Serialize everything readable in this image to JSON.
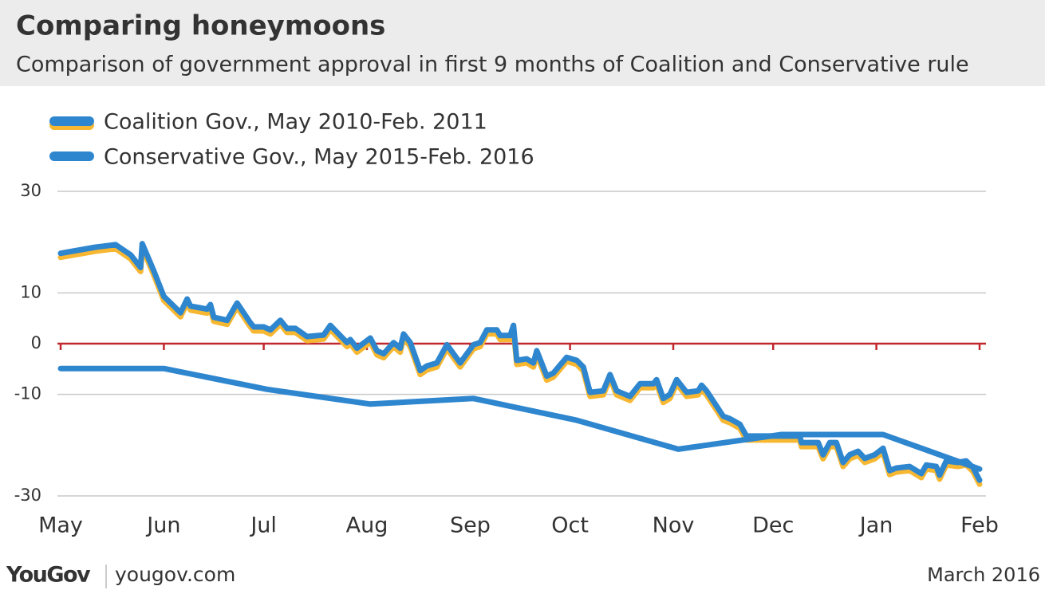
{
  "chart_data": {
    "type": "line",
    "title": "Comparing honeymoons",
    "subtitle": "Comparison of government approval in first 9 months of Coalition and Conservative rule",
    "xlim": [
      0,
      276
    ],
    "xticks": [
      {
        "value": 0,
        "label": "May"
      },
      {
        "value": 31,
        "label": "Jun"
      },
      {
        "value": 61,
        "label": "Jul"
      },
      {
        "value": 92,
        "label": "Aug"
      },
      {
        "value": 123,
        "label": "Sep"
      },
      {
        "value": 153,
        "label": "Oct"
      },
      {
        "value": 184,
        "label": "Nov"
      },
      {
        "value": 214,
        "label": "Dec"
      },
      {
        "value": 245,
        "label": "Jan"
      },
      {
        "value": 276,
        "label": "Feb"
      }
    ],
    "ylim": [
      -30,
      30
    ],
    "yticks": [
      30,
      10,
      0,
      -10,
      -30
    ],
    "grid": true,
    "series": [
      {
        "name": "Coalition Gov., May 2010-Feb. 2011",
        "color": "#2e86cf",
        "shadow_color": "#f7b731",
        "x": [
          0,
          10.5,
          16.5,
          21,
          24,
          24.5,
          28,
          31,
          36,
          38,
          39,
          44,
          45,
          46,
          50,
          53,
          57,
          58,
          61,
          63,
          66,
          68,
          70.5,
          74,
          79,
          81,
          86,
          87,
          89,
          93,
          95,
          97,
          100,
          102,
          103,
          105,
          108,
          110,
          113,
          116,
          120,
          124,
          126,
          128,
          131,
          132,
          135,
          136,
          137,
          140,
          142,
          143,
          146,
          148,
          152,
          155,
          157,
          159,
          163,
          165,
          167,
          171,
          174,
          178,
          179,
          181,
          183,
          185,
          188,
          191.5,
          192.5,
          194,
          199,
          201,
          204,
          206,
          222,
          222.5,
          227.5,
          229,
          231,
          233,
          235,
          237,
          239.5,
          241.5,
          244.5,
          247,
          249,
          251,
          255,
          258.5,
          260,
          263,
          264,
          266,
          269.5,
          272,
          274,
          276
        ],
        "values": [
          17.8,
          19,
          19.5,
          17.5,
          15,
          19.7,
          14.3,
          9.3,
          6.1,
          8.8,
          7.4,
          6.8,
          7.7,
          5.2,
          4.6,
          8,
          4.1,
          3.3,
          3.3,
          2.7,
          4.6,
          3,
          3,
          1.4,
          1.7,
          3.6,
          0.2,
          0.8,
          -0.9,
          1.1,
          -1.4,
          -2,
          0.2,
          -0.9,
          1.9,
          0.2,
          -5.3,
          -4.4,
          -3.8,
          -0.2,
          -3.8,
          -0.2,
          0.2,
          2.7,
          2.7,
          1.6,
          1.6,
          3.6,
          -3.3,
          -3,
          -3.8,
          -1.4,
          -6.4,
          -5.8,
          -2.7,
          -3.3,
          -4.6,
          -9.6,
          -9.3,
          -6.1,
          -9.3,
          -10.4,
          -7.9,
          -7.9,
          -7.1,
          -10.8,
          -10,
          -7.1,
          -9.6,
          -9.3,
          -8.2,
          -9.3,
          -14.3,
          -14.8,
          -15.9,
          -18.2,
          -18.2,
          -19.5,
          -19.5,
          -21.9,
          -19.5,
          -19.5,
          -23.4,
          -21.9,
          -21.2,
          -22.6,
          -21.9,
          -20.6,
          -25,
          -24.5,
          -24.2,
          -25.6,
          -23.9,
          -24.2,
          -25.9,
          -23.1,
          -23.4,
          -23.1,
          -24.4,
          -26.9
        ]
      },
      {
        "name": "Conservative Gov., May 2015-Feb. 2016",
        "color": "#2e86cf",
        "x": [
          0,
          31,
          62,
          93,
          124,
          155,
          185.5,
          216.5,
          247,
          276
        ],
        "values": [
          -4.9,
          -4.9,
          -9,
          -11.9,
          -10.8,
          -15.1,
          -20.8,
          -17.9,
          -17.9,
          -24.7
        ]
      }
    ]
  },
  "logo": "YouGov",
  "website": "yougov.com",
  "date": "March 2016"
}
